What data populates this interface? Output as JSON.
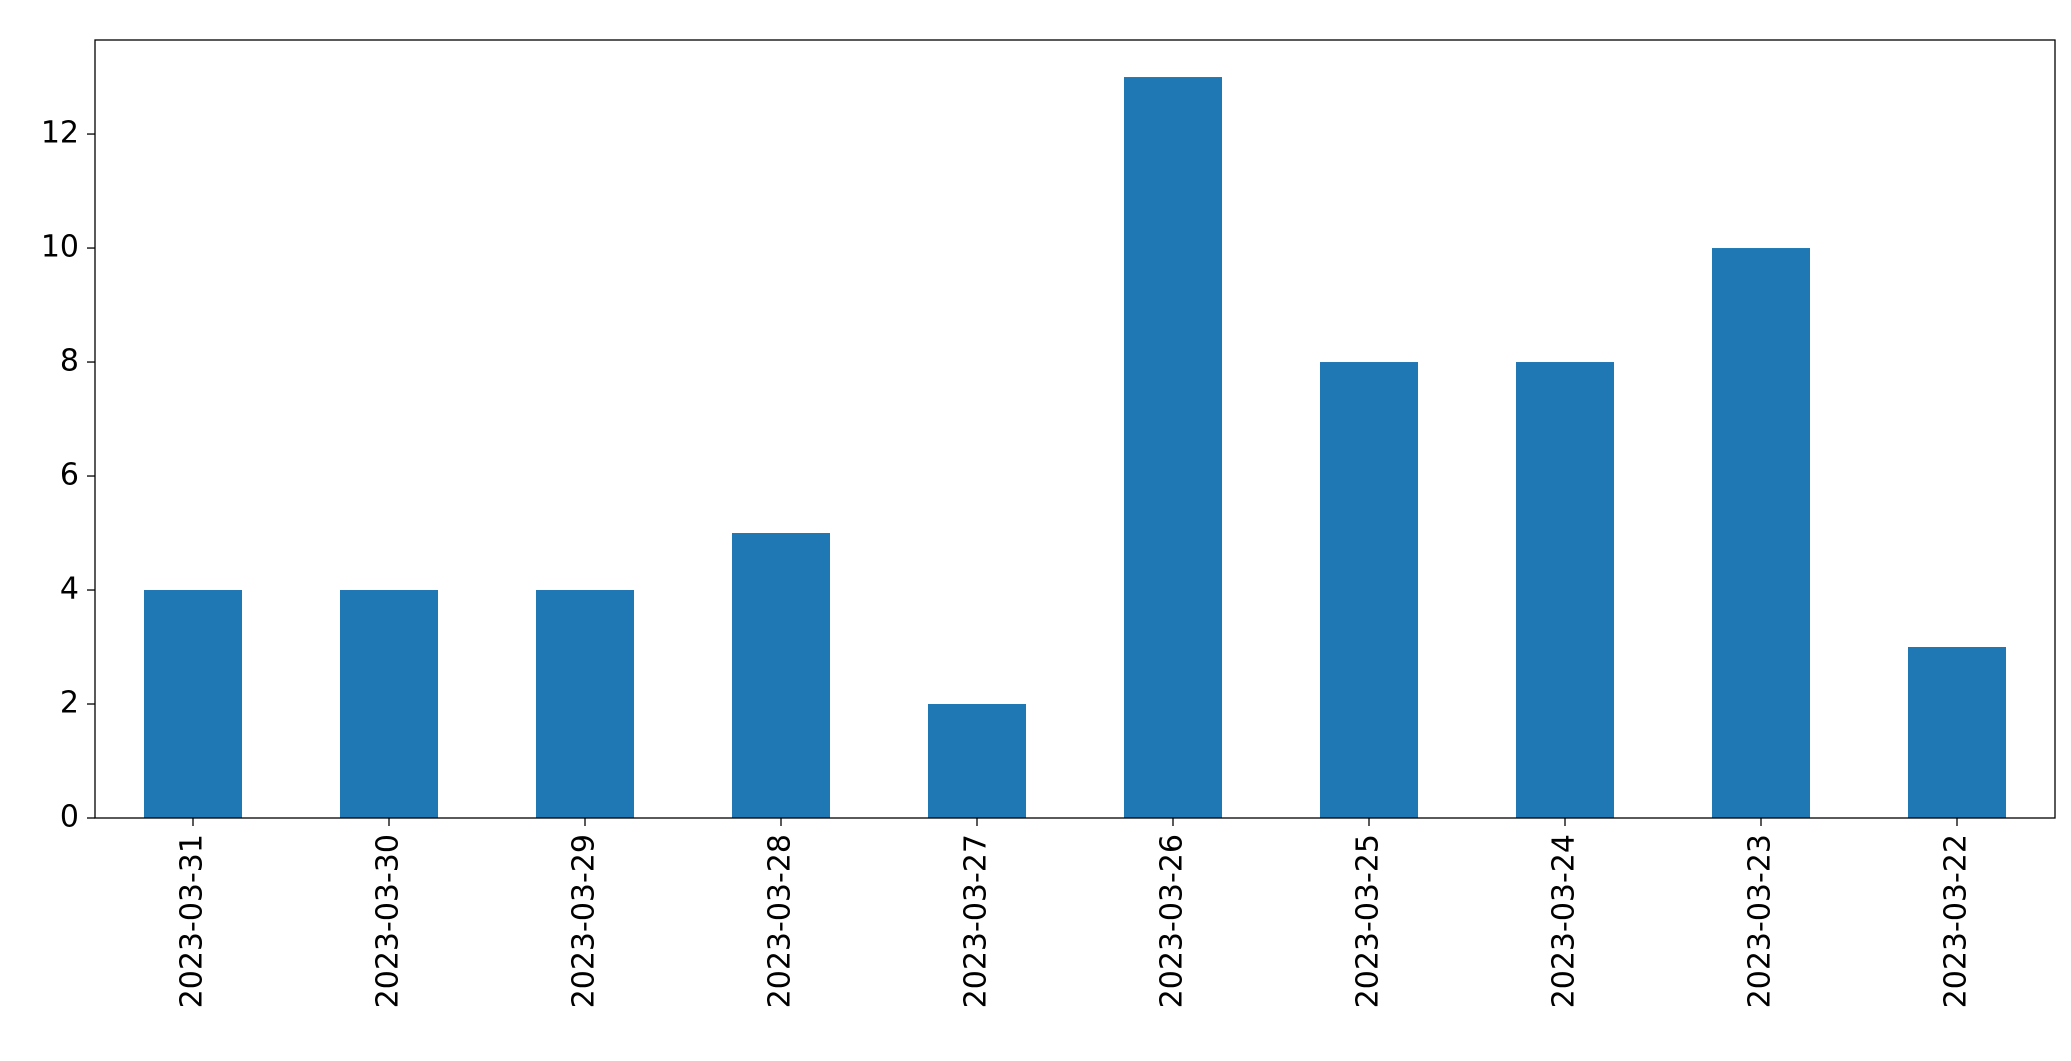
{
  "chart_data": {
    "type": "bar",
    "categories": [
      "2023-03-31",
      "2023-03-30",
      "2023-03-29",
      "2023-03-28",
      "2023-03-27",
      "2023-03-26",
      "2023-03-25",
      "2023-03-24",
      "2023-03-23",
      "2023-03-22"
    ],
    "values": [
      4,
      4,
      4,
      5,
      2,
      13,
      8,
      8,
      10,
      3
    ],
    "color": "#1f77b4",
    "ylim": [
      0,
      13.65
    ],
    "yticks": [
      0,
      2,
      4,
      6,
      8,
      10,
      12
    ],
    "grid": false
  }
}
